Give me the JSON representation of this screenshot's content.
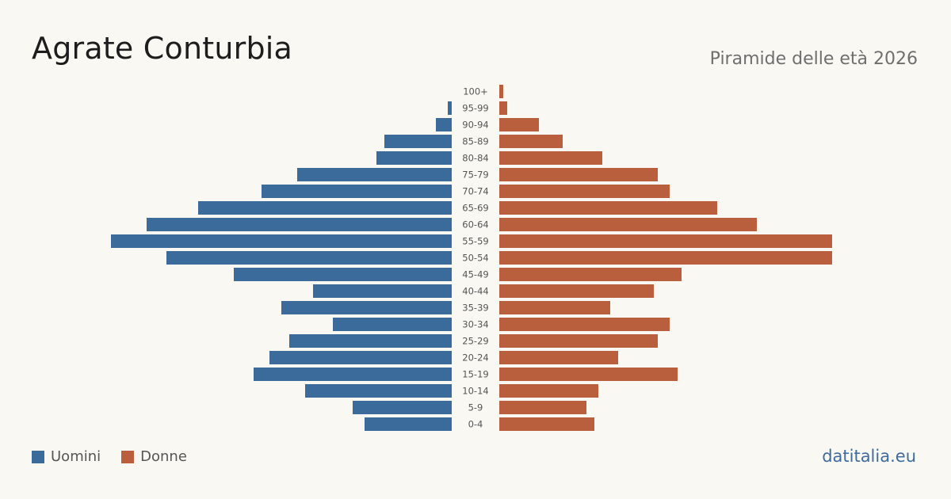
{
  "title": "Agrate Conturbia",
  "subtitle": "Piramide delle età 2026",
  "source": "datitalia.eu",
  "legend": {
    "men": "Uomini",
    "women": "Donne"
  },
  "colors": {
    "men": "#3b6b9a",
    "women": "#b95f3d",
    "background": "#faf8f3"
  },
  "chart_data": {
    "type": "bar",
    "orientation": "horizontal-pyramid",
    "categories": [
      "100+",
      "95-99",
      "90-94",
      "85-89",
      "80-84",
      "75-79",
      "70-74",
      "65-69",
      "60-64",
      "55-59",
      "50-54",
      "45-49",
      "40-44",
      "35-39",
      "30-34",
      "25-29",
      "20-24",
      "15-19",
      "10-14",
      "5-9",
      "0-4"
    ],
    "series": [
      {
        "name": "Uomini",
        "values": [
          0,
          1,
          4,
          17,
          19,
          39,
          48,
          64,
          77,
          86,
          72,
          55,
          35,
          43,
          30,
          41,
          46,
          50,
          37,
          25,
          22
        ]
      },
      {
        "name": "Donne",
        "values": [
          1,
          2,
          10,
          16,
          26,
          40,
          43,
          55,
          65,
          84,
          84,
          46,
          39,
          28,
          43,
          40,
          30,
          45,
          25,
          22,
          24
        ]
      }
    ],
    "xlabel": "",
    "ylabel": "",
    "legend_position": "bottom-left"
  }
}
